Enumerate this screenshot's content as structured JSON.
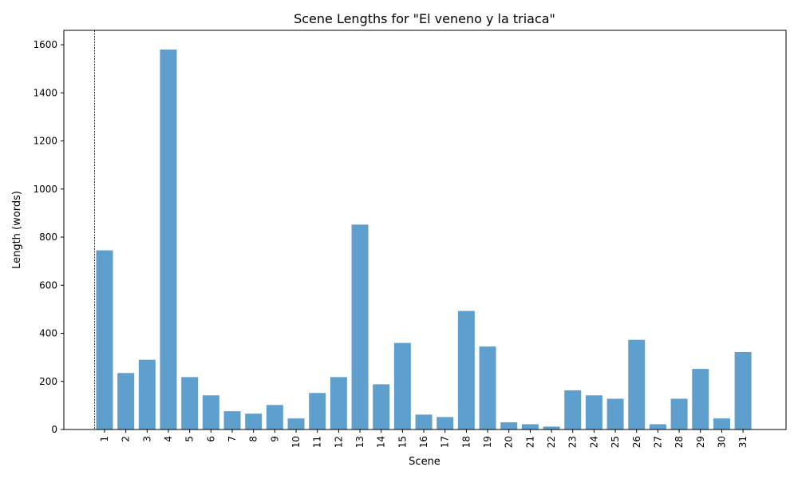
{
  "chart_data": {
    "type": "bar",
    "title": "Scene Lengths for \"El veneno y la triaca\"",
    "xlabel": "Scene",
    "ylabel": "Length (words)",
    "ylim": [
      0,
      1660
    ],
    "yticks": [
      0,
      200,
      400,
      600,
      800,
      1000,
      1200,
      1400,
      1600
    ],
    "grid": false,
    "bar_color": "#5f9fcd",
    "reference_line": {
      "style": "dashed",
      "color": "#000000",
      "x": "before scene 1"
    },
    "categories": [
      "1",
      "2",
      "3",
      "4",
      "5",
      "6",
      "7",
      "8",
      "9",
      "10",
      "11",
      "12",
      "13",
      "14",
      "15",
      "16",
      "17",
      "18",
      "19",
      "20",
      "21",
      "22",
      "23",
      "24",
      "25",
      "26",
      "27",
      "28",
      "29",
      "30",
      "31"
    ],
    "values": [
      745,
      235,
      290,
      1580,
      218,
      142,
      76,
      66,
      102,
      46,
      152,
      218,
      852,
      188,
      360,
      62,
      52,
      493,
      345,
      30,
      22,
      12,
      163,
      142,
      128,
      373,
      22,
      128,
      252,
      46,
      322
    ]
  }
}
